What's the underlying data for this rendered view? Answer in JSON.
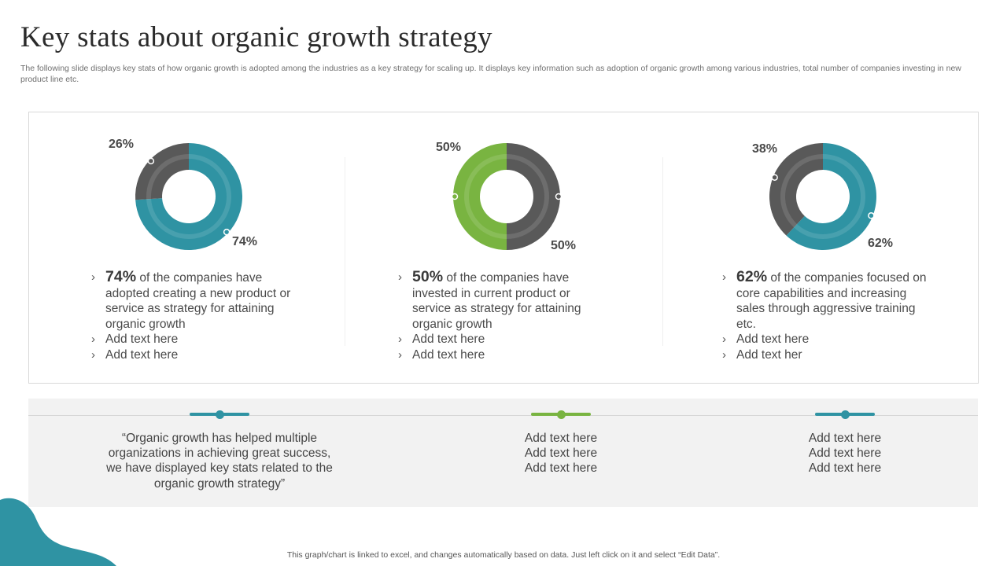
{
  "header": {
    "title": "Key stats about organic growth strategy",
    "subtitle": "The following slide displays key stats of how organic growth is adopted among the industries as a key strategy for  scaling up. It displays key information such as adoption of organic growth among various industries, total number of companies investing in new product line etc."
  },
  "colors": {
    "teal": "#2f93a3",
    "dark_grey": "#595959",
    "green": "#79b441",
    "inner_ring": "#ffffff"
  },
  "chart_data": [
    {
      "type": "pie",
      "variant": "donut",
      "slices": [
        {
          "value": 74,
          "label": "74%",
          "color": "#2f93a3"
        },
        {
          "value": 26,
          "label": "26%",
          "color": "#595959"
        }
      ]
    },
    {
      "type": "pie",
      "variant": "donut",
      "slices": [
        {
          "value": 50,
          "label": "50%",
          "color": "#595959"
        },
        {
          "value": 50,
          "label": "50%",
          "color": "#79b441"
        }
      ]
    },
    {
      "type": "pie",
      "variant": "donut",
      "slices": [
        {
          "value": 62,
          "label": "62%",
          "color": "#2f93a3"
        },
        {
          "value": 38,
          "label": "38%",
          "color": "#595959"
        }
      ]
    }
  ],
  "stats": [
    {
      "highlight": "74%",
      "text": " of the companies have adopted creating a new product or service as strategy for attaining organic growth",
      "extra": [
        "Add text here",
        "Add text here"
      ]
    },
    {
      "highlight": "50%",
      "text": " of the companies have invested in current product or service as strategy for attaining organic growth",
      "extra": [
        "Add text here",
        "Add text here"
      ]
    },
    {
      "highlight": "62%",
      "text": " of the companies focused on core capabilities and increasing sales through aggressive training etc.",
      "extra": [
        "Add text here",
        "Add text her"
      ]
    }
  ],
  "band": {
    "quote": "“Organic growth has helped multiple organizations in achieving great success, we have displayed key stats related to the organic growth strategy”",
    "col2": [
      "Add text here",
      "Add text here",
      "Add text here"
    ],
    "col3": [
      "Add text here",
      "Add text here",
      "Add text here"
    ]
  },
  "footer": {
    "note": "This graph/chart is linked to excel,  and changes automatically based on data. Just left click on it and select “Edit Data”."
  }
}
